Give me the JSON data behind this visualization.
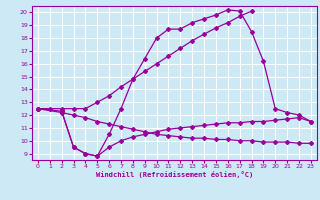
{
  "xlabel": "Windchill (Refroidissement éolien,°C)",
  "bg_color": "#cce9f5",
  "line_color": "#990099",
  "grid_color": "#ffffff",
  "xmin": -0.5,
  "xmax": 23.5,
  "ymin": 8.5,
  "ymax": 20.5,
  "yticks": [
    9,
    10,
    11,
    12,
    13,
    14,
    15,
    16,
    17,
    18,
    19,
    20
  ],
  "xticks": [
    0,
    1,
    2,
    3,
    4,
    5,
    6,
    7,
    8,
    9,
    10,
    11,
    12,
    13,
    14,
    15,
    16,
    17,
    18,
    19,
    20,
    21,
    22,
    23
  ],
  "line1_x": [
    0,
    1,
    2,
    3,
    4,
    5,
    6,
    7,
    8,
    9,
    10,
    11,
    12,
    13,
    14,
    15,
    16,
    17,
    18
  ],
  "line1_y": [
    12.5,
    12.5,
    12.5,
    12.5,
    12.5,
    13.0,
    13.5,
    14.2,
    14.8,
    15.4,
    16.0,
    16.6,
    17.2,
    17.8,
    18.3,
    18.8,
    19.2,
    19.7,
    20.1
  ],
  "line2_x": [
    2,
    3,
    4,
    5,
    6,
    7,
    8,
    9,
    10,
    11,
    12,
    13,
    14,
    15,
    16,
    17,
    18,
    19,
    20,
    21,
    22,
    23
  ],
  "line2_y": [
    12.3,
    9.5,
    9.0,
    8.8,
    10.5,
    12.5,
    14.8,
    16.4,
    18.0,
    18.7,
    18.7,
    19.2,
    19.5,
    19.8,
    20.2,
    20.1,
    18.5,
    16.2,
    12.5,
    12.2,
    12.0,
    11.5
  ],
  "line3_x": [
    0,
    2,
    3,
    4,
    5,
    6,
    7,
    8,
    9,
    10,
    11,
    12,
    13,
    14,
    15,
    16,
    17,
    18,
    19,
    20,
    21,
    22,
    23
  ],
  "line3_y": [
    12.5,
    12.3,
    9.5,
    9.0,
    8.8,
    9.5,
    10.0,
    10.3,
    10.5,
    10.7,
    10.9,
    11.0,
    11.1,
    11.2,
    11.3,
    11.4,
    11.4,
    11.5,
    11.5,
    11.6,
    11.7,
    11.8,
    11.5
  ],
  "line4_x": [
    0,
    2,
    3,
    4,
    5,
    6,
    7,
    8,
    9,
    10,
    11,
    12,
    13,
    14,
    15,
    16,
    17,
    18,
    19,
    20,
    21,
    22,
    23
  ],
  "line4_y": [
    12.5,
    12.2,
    12.0,
    11.8,
    11.5,
    11.3,
    11.1,
    10.9,
    10.7,
    10.5,
    10.4,
    10.3,
    10.2,
    10.2,
    10.1,
    10.1,
    10.0,
    10.0,
    9.9,
    9.9,
    9.9,
    9.8,
    9.8
  ]
}
